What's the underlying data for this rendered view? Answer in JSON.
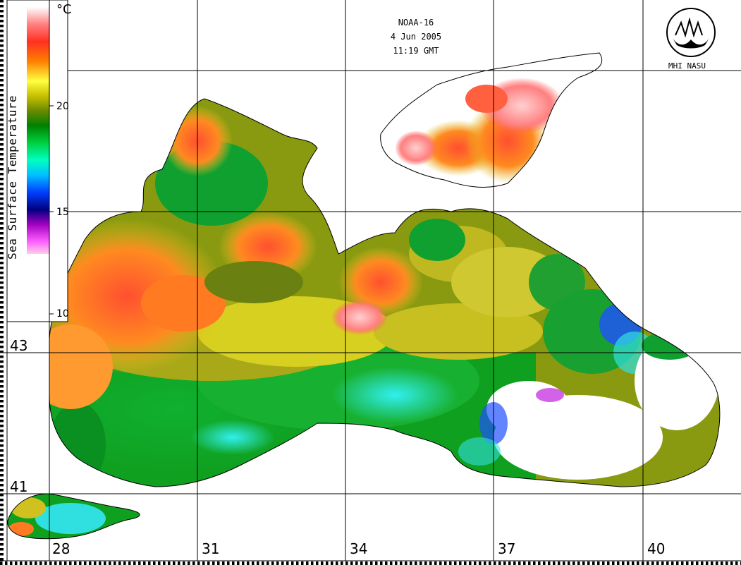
{
  "header": {
    "satellite": "NOAA-16",
    "date": "4 Jun 2005",
    "time": "11:19 GMT"
  },
  "logo": {
    "text": "MHI NASU"
  },
  "color_scale": {
    "title": "Sea Surface Temperature",
    "unit": "°C",
    "ticks": [
      "20",
      "15",
      "10"
    ],
    "stops": [
      "#ffd0e8",
      "#ff60ff",
      "#a000c0",
      "#000080",
      "#0040ff",
      "#00c0ff",
      "#00ffc0",
      "#00d040",
      "#008000",
      "#6a8a00",
      "#c8c000",
      "#ffff40",
      "#ff8000",
      "#ff3020",
      "#ff8080",
      "#ffd0d0",
      "#ffffff"
    ]
  },
  "longitudes": [
    "28",
    "31",
    "34",
    "37",
    "40"
  ],
  "latitudes": [
    "43",
    "41"
  ],
  "colors": {
    "land": "#ffffff",
    "grid": "#000000",
    "deep_green": "#10a020",
    "olive": "#8a9a10",
    "yellow": "#d8d020",
    "orange": "#ff7a20",
    "red_pink": "#ff5050",
    "cyan": "#30e0e0",
    "blue": "#2050ff",
    "magenta": "#c020e0"
  }
}
